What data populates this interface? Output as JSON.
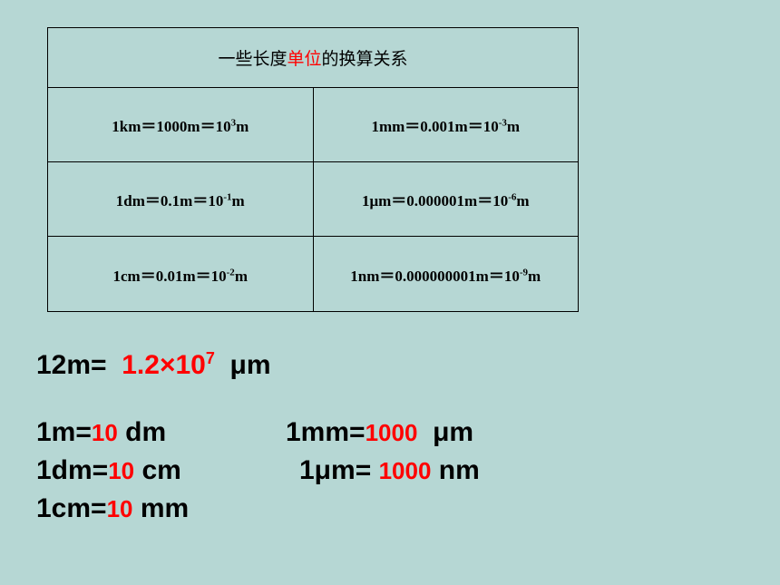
{
  "colors": {
    "background": "#b6d7d4",
    "red": "#ff0000",
    "black": "#000000"
  },
  "table": {
    "title_prefix": "一些长度",
    "title_red": "单位",
    "title_suffix": "的换算关系",
    "rows": [
      {
        "left": {
          "unit": "1km",
          "eq": "＝",
          "v1": "1000m",
          "v2": "10",
          "exp": "3",
          "tail": "m"
        },
        "right": {
          "unit": "1mm",
          "eq": "＝",
          "v1": "0.001m",
          "v2": "10",
          "exp": "-3",
          "tail": "m"
        }
      },
      {
        "left": {
          "unit": "1dm",
          "eq": "＝",
          "v1": "0.1m",
          "v2": "10",
          "exp": "-1",
          "tail": "m"
        },
        "right": {
          "unit": "1μm",
          "eq": "＝",
          "v1": "0.000001m",
          "v2": "10",
          "exp": "-6",
          "tail": "m"
        }
      },
      {
        "left": {
          "unit": "1cm",
          "eq": "＝",
          "v1": "0.01m",
          "v2": "10",
          "exp": "-2",
          "tail": "m"
        },
        "right": {
          "unit": "1nm",
          "eq": "＝",
          "v1": "0.000000001m",
          "v2": "10",
          "exp": "-9",
          "tail": "m"
        }
      }
    ]
  },
  "equations": {
    "eq1_lhs": "12m=",
    "eq1_val": "1.2×10",
    "eq1_exp": "7",
    "eq1_unit": "μm",
    "eq2_lhs": "1m=",
    "eq2_val": "10",
    "eq2_unit": "dm",
    "eq3_lhs": "1dm=",
    "eq3_val": "10",
    "eq3_unit": "cm",
    "eq4_lhs": "1cm=",
    "eq4_val": "10",
    "eq4_unit": "mm",
    "eq5_lhs": "1mm=",
    "eq5_val": "1000",
    "eq5_unit": "μm",
    "eq6_lhs": "1μm=",
    "eq6_val": "1000",
    "eq6_unit": "nm"
  }
}
